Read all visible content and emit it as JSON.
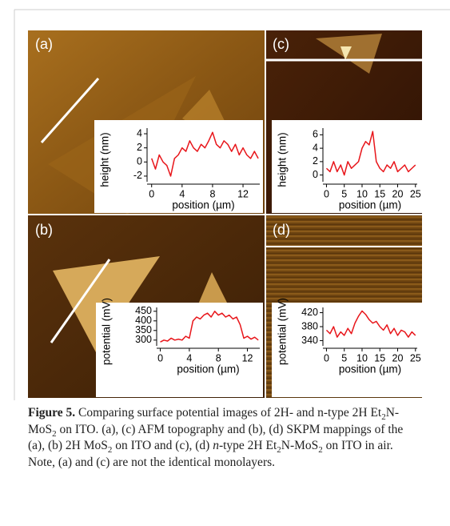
{
  "panels": [
    {
      "label": "(a)",
      "chart": {
        "type": "line",
        "x_label": "position (µm)",
        "y_label": "height (nm)",
        "x": [
          0,
          0.5,
          1,
          1.5,
          2,
          2.5,
          3,
          3.5,
          4,
          4.5,
          5,
          5.5,
          6,
          6.5,
          7,
          7.5,
          8,
          8.5,
          9,
          9.5,
          10,
          10.5,
          11,
          11.5,
          12,
          12.5,
          13,
          13.5,
          14
        ],
        "values": [
          0.5,
          -1,
          1,
          0,
          -0.5,
          -2,
          0.5,
          1,
          2,
          1.5,
          3,
          2,
          1.5,
          2.5,
          2,
          3,
          4.2,
          2.5,
          2,
          3,
          2.5,
          1.5,
          2.5,
          1,
          2,
          1,
          0.5,
          1.5,
          0.5
        ],
        "color": "#e8161b",
        "xlim": [
          -0.6,
          14.2
        ],
        "ylim": [
          -2.8,
          4.8
        ],
        "xticks": [
          0,
          4,
          8,
          12
        ],
        "yticks": [
          -2,
          0,
          2,
          4
        ]
      }
    },
    {
      "label": "(c)",
      "chart": {
        "type": "line",
        "x_label": "position (µm)",
        "y_label": "height (nm)",
        "x": [
          0,
          1,
          2,
          3,
          4,
          5,
          6,
          7,
          8,
          9,
          10,
          11,
          12,
          13,
          14,
          15,
          16,
          17,
          18,
          19,
          20,
          21,
          22,
          23,
          24,
          25
        ],
        "values": [
          1,
          0.5,
          2,
          0.5,
          1.5,
          0,
          2,
          1,
          1.5,
          2,
          4,
          5,
          4.5,
          6.5,
          2,
          1,
          0.5,
          1.5,
          1,
          2,
          0.5,
          1,
          1.5,
          0.5,
          1,
          1.5
        ],
        "color": "#e8161b",
        "xlim": [
          -1,
          25.5
        ],
        "ylim": [
          -1,
          7
        ],
        "xticks": [
          0,
          5,
          10,
          15,
          20,
          25
        ],
        "yticks": [
          0,
          2,
          4,
          6
        ]
      }
    },
    {
      "label": "(b)",
      "chart": {
        "type": "line",
        "x_label": "position (µm)",
        "y_label": "potential (mV)",
        "x": [
          0,
          0.5,
          1,
          1.5,
          2,
          2.5,
          3,
          3.5,
          4,
          4.5,
          5,
          5.5,
          6,
          6.5,
          7,
          7.5,
          8,
          8.5,
          9,
          9.5,
          10,
          10.5,
          11,
          11.5,
          12,
          12.5,
          13,
          13.5
        ],
        "values": [
          290,
          300,
          295,
          310,
          300,
          305,
          300,
          320,
          310,
          400,
          420,
          410,
          430,
          440,
          420,
          450,
          430,
          440,
          420,
          430,
          410,
          420,
          380,
          310,
          320,
          305,
          315,
          300
        ],
        "color": "#e8161b",
        "xlim": [
          -0.5,
          13.7
        ],
        "ylim": [
          270,
          470
        ],
        "xticks": [
          0,
          4,
          8,
          12
        ],
        "yticks": [
          300,
          350,
          400,
          450
        ]
      }
    },
    {
      "label": "(d)",
      "chart": {
        "type": "line",
        "x_label": "position (µm)",
        "y_label": "potential (mV)",
        "x": [
          0,
          1,
          2,
          3,
          4,
          5,
          6,
          7,
          8,
          9,
          10,
          11,
          12,
          13,
          14,
          15,
          16,
          17,
          18,
          19,
          20,
          21,
          22,
          23,
          24,
          25
        ],
        "values": [
          370,
          360,
          380,
          350,
          365,
          355,
          375,
          360,
          390,
          410,
          425,
          415,
          400,
          390,
          395,
          380,
          370,
          385,
          360,
          375,
          355,
          370,
          365,
          350,
          365,
          355
        ],
        "color": "#e8161b",
        "xlim": [
          -1,
          25.5
        ],
        "ylim": [
          325,
          435
        ],
        "xticks": [
          0,
          5,
          10,
          15,
          20,
          25
        ],
        "yticks": [
          340,
          380,
          420
        ]
      }
    }
  ],
  "caption": {
    "label": "Figure 5.",
    "parts": [
      "Comparing surface potential images of 2H- and n-type 2H Et",
      "2",
      "N-MoS",
      "2",
      " on ITO. (a), (c) AFM topography and (b), (d) SKPM mappings of the (a), (b) 2H MoS",
      "2",
      " on ITO and (c), (d) ",
      "n",
      "-type 2H Et",
      "2",
      "N-MoS",
      "2",
      " on ITO in air. Note, (a) and (c) are not the identical monolayers."
    ]
  }
}
